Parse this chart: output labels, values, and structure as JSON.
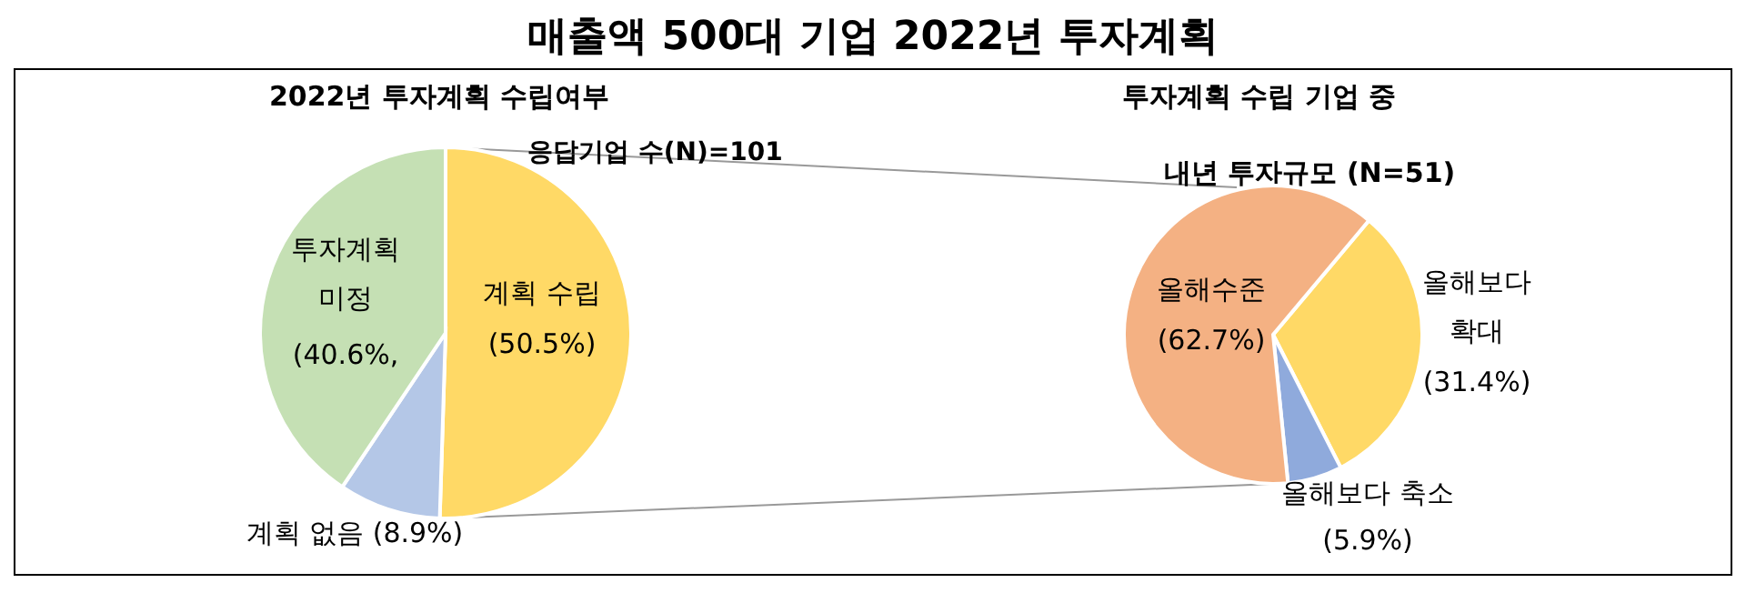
{
  "chart_data": [
    {
      "type": "pie",
      "title": "매출액 500대 기업 2022년 투자계획",
      "subtitle": "2022년 투자계획 수립여부",
      "annotations": [
        "응답기업 수(N)=101"
      ],
      "categories": [
        "계획 수립",
        "계획 없음",
        "투자계획 미정"
      ],
      "values": [
        50.5,
        8.9,
        40.6
      ],
      "colors": [
        "#ffd966",
        "#b4c7e7",
        "#c5e0b4"
      ],
      "value_labels": [
        "(50.5%)",
        "(8.9%)",
        "(40.6%,"
      ]
    },
    {
      "type": "pie",
      "title": "투자계획 수립 기업 중",
      "subtitle": "내년 투자규모 (N=51)",
      "categories": [
        "올해보다 확대",
        "올해보다 축소",
        "올해수준"
      ],
      "values": [
        31.4,
        5.9,
        62.7
      ],
      "colors": [
        "#ffd966",
        "#8faadc",
        "#f4b183"
      ],
      "value_labels": [
        "(31.4%)",
        "(5.9%)",
        "(62.7%)"
      ]
    }
  ]
}
